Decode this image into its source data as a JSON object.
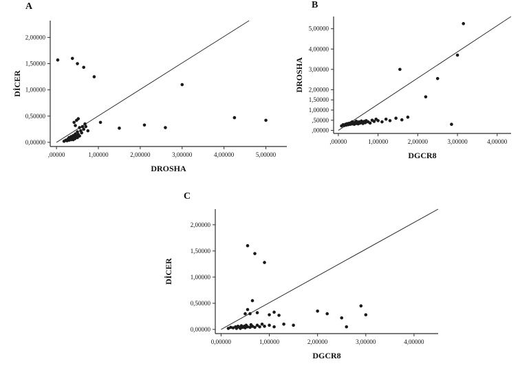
{
  "figure": {
    "background": "#ffffff",
    "point_color": "#1a1a1a",
    "axis_color": "#2b2b2b",
    "refline_color": "#2b2b2b"
  },
  "chart_data": [
    {
      "type": "scatter",
      "panel_label": "A",
      "xlabel": "DROSHA",
      "ylabel": "DİCER",
      "xlim": [
        -0.15,
        5.5
      ],
      "ylim": [
        -0.08,
        2.32
      ],
      "grid": false,
      "legend": "none",
      "refline": [
        0,
        0,
        4.6,
        2.32
      ],
      "xticks": [
        {
          "v": 0,
          "label": ",00000"
        },
        {
          "v": 1,
          "label": "1,00000"
        },
        {
          "v": 2,
          "label": "2,00000"
        },
        {
          "v": 3,
          "label": "3,00000"
        },
        {
          "v": 4,
          "label": "4,00000"
        },
        {
          "v": 5,
          "label": "5,00000"
        }
      ],
      "yticks": [
        {
          "v": 0,
          "label": "0,00000"
        },
        {
          "v": 0.5,
          "label": "0,50000"
        },
        {
          "v": 1,
          "label": "1,00000"
        },
        {
          "v": 1.5,
          "label": "1,50000"
        },
        {
          "v": 2,
          "label": "2,00000"
        }
      ],
      "points": [
        [
          0.18,
          0.02
        ],
        [
          0.22,
          0.04
        ],
        [
          0.25,
          0.03
        ],
        [
          0.27,
          0.06
        ],
        [
          0.3,
          0.04
        ],
        [
          0.3,
          0.09
        ],
        [
          0.33,
          0.06
        ],
        [
          0.35,
          0.05
        ],
        [
          0.35,
          0.11
        ],
        [
          0.38,
          0.08
        ],
        [
          0.4,
          0.05
        ],
        [
          0.4,
          0.13
        ],
        [
          0.42,
          0.1
        ],
        [
          0.44,
          0.07
        ],
        [
          0.45,
          0.16
        ],
        [
          0.47,
          0.12
        ],
        [
          0.5,
          0.09
        ],
        [
          0.5,
          0.2
        ],
        [
          0.52,
          0.15
        ],
        [
          0.55,
          0.12
        ],
        [
          0.55,
          0.28
        ],
        [
          0.58,
          0.22
        ],
        [
          0.6,
          0.18
        ],
        [
          0.62,
          0.3
        ],
        [
          0.65,
          0.25
        ],
        [
          0.68,
          0.35
        ],
        [
          0.7,
          0.3
        ],
        [
          0.45,
          0.32
        ],
        [
          0.42,
          0.38
        ],
        [
          0.48,
          0.42
        ],
        [
          0.52,
          0.45
        ],
        [
          0.75,
          0.22
        ],
        [
          1.05,
          0.38
        ],
        [
          1.5,
          0.27
        ],
        [
          2.1,
          0.33
        ],
        [
          2.6,
          0.28
        ],
        [
          4.25,
          0.47
        ],
        [
          5.0,
          0.42
        ],
        [
          3.0,
          1.1
        ],
        [
          0.03,
          1.57
        ],
        [
          0.38,
          1.6
        ],
        [
          0.5,
          1.5
        ],
        [
          0.65,
          1.43
        ],
        [
          0.9,
          1.25
        ]
      ]
    },
    {
      "type": "scatter",
      "panel_label": "B",
      "xlabel": "DGCR8",
      "ylabel": "DROSHA",
      "xlim": [
        -0.12,
        4.35
      ],
      "ylim": [
        -0.15,
        5.6
      ],
      "grid": false,
      "legend": "none",
      "refline": [
        0,
        0,
        4.35,
        5.6
      ],
      "xticks": [
        {
          "v": 0,
          "label": ",00000"
        },
        {
          "v": 1,
          "label": "1,00000"
        },
        {
          "v": 2,
          "label": "2,00000"
        },
        {
          "v": 3,
          "label": "3,00000"
        },
        {
          "v": 4,
          "label": "4,00000"
        }
      ],
      "yticks": [
        {
          "v": 0,
          "label": ",00000"
        },
        {
          "v": 0.5,
          "label": ",50000"
        },
        {
          "v": 1,
          "label": "1,00000"
        },
        {
          "v": 1.5,
          "label": "1,50000"
        },
        {
          "v": 2,
          "label": "2,00000"
        },
        {
          "v": 3,
          "label": "3,00000"
        },
        {
          "v": 4,
          "label": "4,00000"
        },
        {
          "v": 5,
          "label": "5,00000"
        }
      ],
      "points": [
        [
          0.08,
          0.22
        ],
        [
          0.12,
          0.28
        ],
        [
          0.15,
          0.24
        ],
        [
          0.18,
          0.3
        ],
        [
          0.2,
          0.26
        ],
        [
          0.22,
          0.33
        ],
        [
          0.25,
          0.28
        ],
        [
          0.27,
          0.35
        ],
        [
          0.3,
          0.3
        ],
        [
          0.32,
          0.38
        ],
        [
          0.35,
          0.32
        ],
        [
          0.35,
          0.42
        ],
        [
          0.38,
          0.36
        ],
        [
          0.4,
          0.3
        ],
        [
          0.42,
          0.4
        ],
        [
          0.45,
          0.34
        ],
        [
          0.45,
          0.45
        ],
        [
          0.48,
          0.38
        ],
        [
          0.5,
          0.32
        ],
        [
          0.52,
          0.42
        ],
        [
          0.55,
          0.36
        ],
        [
          0.58,
          0.46
        ],
        [
          0.6,
          0.4
        ],
        [
          0.62,
          0.34
        ],
        [
          0.65,
          0.44
        ],
        [
          0.68,
          0.38
        ],
        [
          0.7,
          0.48
        ],
        [
          0.75,
          0.42
        ],
        [
          0.8,
          0.36
        ],
        [
          0.85,
          0.5
        ],
        [
          0.9,
          0.44
        ],
        [
          0.95,
          0.55
        ],
        [
          1.0,
          0.48
        ],
        [
          1.1,
          0.42
        ],
        [
          1.2,
          0.55
        ],
        [
          1.3,
          0.48
        ],
        [
          1.45,
          0.6
        ],
        [
          1.6,
          0.52
        ],
        [
          1.75,
          0.65
        ],
        [
          1.55,
          3.0
        ],
        [
          2.2,
          1.65
        ],
        [
          2.5,
          2.55
        ],
        [
          3.0,
          3.7
        ],
        [
          3.15,
          5.25
        ],
        [
          2.85,
          0.3
        ]
      ]
    },
    {
      "type": "scatter",
      "panel_label": "C",
      "xlabel": "DGCR8",
      "ylabel": "DİCER",
      "xlim": [
        -0.12,
        4.5
      ],
      "ylim": [
        -0.08,
        2.3
      ],
      "grid": false,
      "legend": "none",
      "refline": [
        0,
        0,
        4.5,
        2.3
      ],
      "xticks": [
        {
          "v": 0,
          "label": "0,00000"
        },
        {
          "v": 1,
          "label": "1,00000"
        },
        {
          "v": 2,
          "label": "2,00000"
        },
        {
          "v": 3,
          "label": "3,00000"
        },
        {
          "v": 4,
          "label": "4,00000"
        }
      ],
      "yticks": [
        {
          "v": 0,
          "label": "0,00000"
        },
        {
          "v": 0.5,
          "label": "0,50000"
        },
        {
          "v": 1,
          "label": "1,00000"
        },
        {
          "v": 1.5,
          "label": "1,50000"
        },
        {
          "v": 2,
          "label": "2,00000"
        }
      ],
      "points": [
        [
          0.15,
          0.02
        ],
        [
          0.2,
          0.04
        ],
        [
          0.25,
          0.03
        ],
        [
          0.3,
          0.05
        ],
        [
          0.32,
          0.02
        ],
        [
          0.35,
          0.06
        ],
        [
          0.38,
          0.04
        ],
        [
          0.4,
          0.02
        ],
        [
          0.42,
          0.07
        ],
        [
          0.45,
          0.04
        ],
        [
          0.48,
          0.06
        ],
        [
          0.5,
          0.03
        ],
        [
          0.52,
          0.08
        ],
        [
          0.55,
          0.05
        ],
        [
          0.6,
          0.04
        ],
        [
          0.62,
          0.09
        ],
        [
          0.65,
          0.06
        ],
        [
          0.7,
          0.04
        ],
        [
          0.75,
          0.08
        ],
        [
          0.8,
          0.05
        ],
        [
          0.85,
          0.1
        ],
        [
          0.9,
          0.06
        ],
        [
          1.0,
          0.08
        ],
        [
          1.1,
          0.05
        ],
        [
          0.5,
          0.3
        ],
        [
          0.55,
          0.38
        ],
        [
          0.6,
          0.3
        ],
        [
          0.65,
          0.55
        ],
        [
          0.75,
          0.32
        ],
        [
          1.0,
          0.28
        ],
        [
          1.1,
          0.33
        ],
        [
          1.2,
          0.27
        ],
        [
          1.3,
          0.1
        ],
        [
          1.5,
          0.08
        ],
        [
          2.0,
          0.35
        ],
        [
          2.2,
          0.3
        ],
        [
          2.5,
          0.22
        ],
        [
          2.9,
          0.45
        ],
        [
          3.0,
          0.28
        ],
        [
          2.6,
          0.05
        ],
        [
          0.55,
          1.6
        ],
        [
          0.7,
          1.45
        ],
        [
          0.9,
          1.28
        ]
      ]
    }
  ]
}
